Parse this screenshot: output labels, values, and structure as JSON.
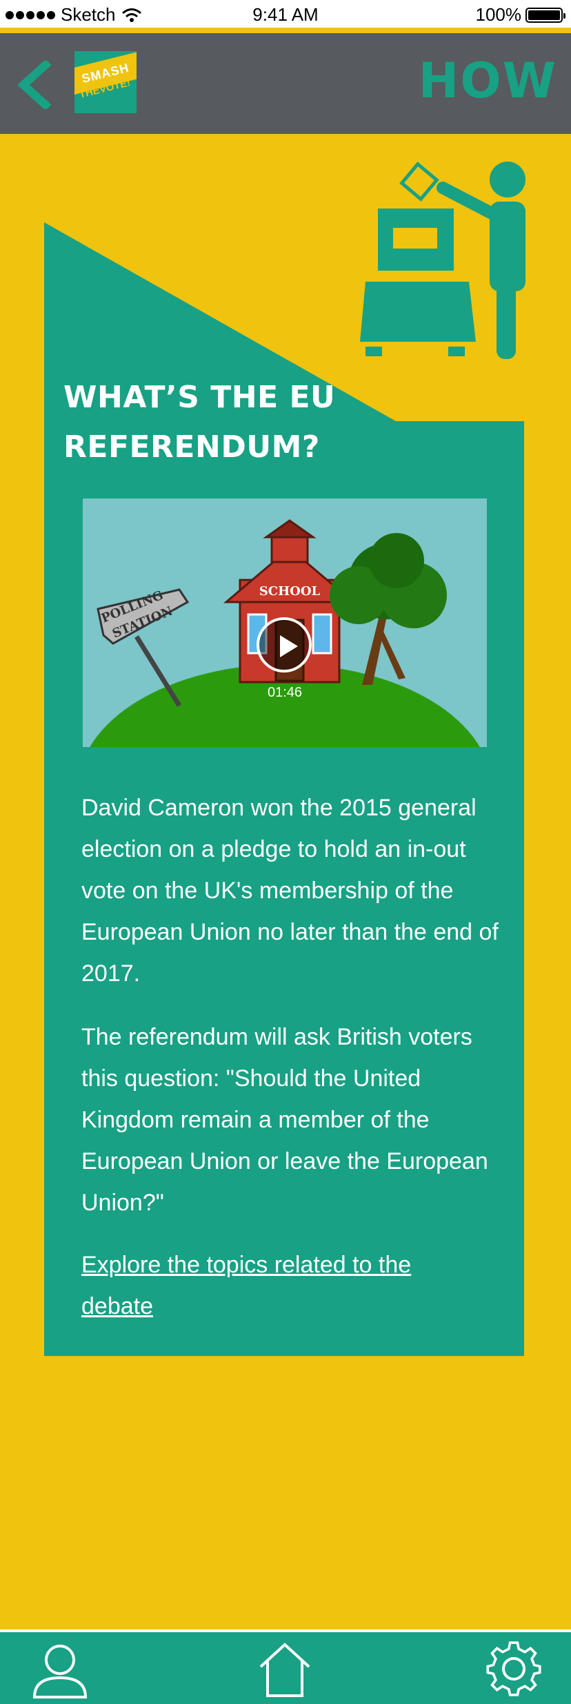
{
  "status_bar": {
    "carrier": "Sketch",
    "time": "9:41 AM",
    "battery": "100%"
  },
  "header": {
    "logo_line1": "SMASH",
    "logo_line2": "THEVOTE!",
    "title": "HOW"
  },
  "card": {
    "title_line1": "WHAT’S THE EU",
    "title_line2": "REFERENDUM?",
    "video": {
      "sign_text_line1": "POLLING",
      "sign_text_line2": "STATION",
      "building_text": "SCHOOL",
      "duration": "01:46"
    },
    "paragraph1": "David Cameron won the 2015 general election on a pledge to hold an in-out vote on the UK's membership of the European Union no later than the end of 2017.",
    "paragraph2": "The referendum will ask British voters this question: \"Should the United Kingdom remain a member of the European Union or leave the European Union?\"",
    "link": "Explore the topics related to the debate"
  },
  "colors": {
    "background": "#f0c30f",
    "header": "#575a5f",
    "accent": "#18a184"
  },
  "tabbar": {
    "items": [
      {
        "icon": "user-icon"
      },
      {
        "icon": "home-icon"
      },
      {
        "icon": "gear-icon"
      }
    ]
  }
}
